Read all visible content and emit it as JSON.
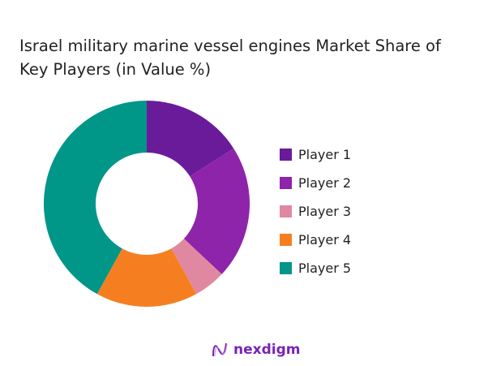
{
  "chart_data": {
    "type": "pie",
    "donut": true,
    "title": "Israel military marine vessel engines Market Share of Key Players (in Value %)",
    "categories": [
      "Player 1",
      "Player 2",
      "Player 3",
      "Player 4",
      "Player 5"
    ],
    "values": [
      16,
      21,
      5,
      16,
      42
    ],
    "unit": "%",
    "colors": [
      "#6a1b9a",
      "#8e24aa",
      "#e088a1",
      "#f57f20",
      "#009688"
    ],
    "legend_position": "right",
    "start_angle": "top, clockwise"
  },
  "brand": {
    "name": "nexdigm",
    "color": "#7a22b5"
  }
}
